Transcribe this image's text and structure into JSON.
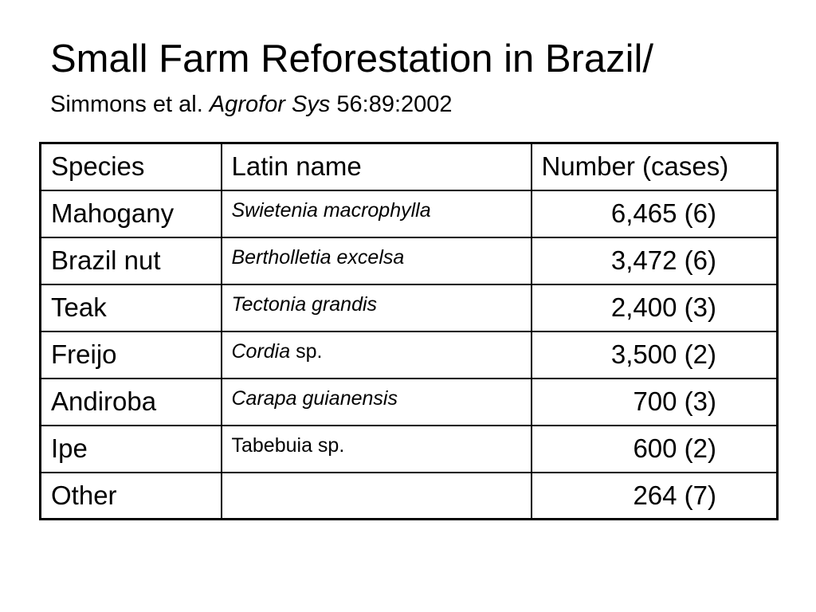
{
  "slide": {
    "title": "Small Farm Reforestation in Brazil/",
    "citation": {
      "authors": "Simmons et al. ",
      "journal": "Agrofor Sys",
      "volume": " 56:89:2002"
    }
  },
  "table": {
    "headers": [
      "Species",
      "Latin name",
      "Number (cases)"
    ],
    "rows": [
      {
        "species": "Mahogany",
        "latin_italic": "Swietenia macrophylla",
        "latin_plain": "",
        "number": "6,465 (6)"
      },
      {
        "species": "Brazil nut",
        "latin_italic": "Bertholletia excelsa",
        "latin_plain": "",
        "number": "3,472 (6)"
      },
      {
        "species": "Teak",
        "latin_italic": "Tectonia grandis",
        "latin_plain": "",
        "number": "2,400 (3)"
      },
      {
        "species": "Freijo",
        "latin_italic": "Cordia",
        "latin_plain": " sp.",
        "number": "3,500 (2)"
      },
      {
        "species": "Andiroba",
        "latin_italic": "Carapa guianensis",
        "latin_plain": "",
        "number": "700 (3)"
      },
      {
        "species": "Ipe",
        "latin_italic": "",
        "latin_plain": "Tabebuia sp.",
        "number": "600 (2)"
      },
      {
        "species": "Other",
        "latin_italic": "",
        "latin_plain": "",
        "number": "264 (7)"
      }
    ]
  }
}
